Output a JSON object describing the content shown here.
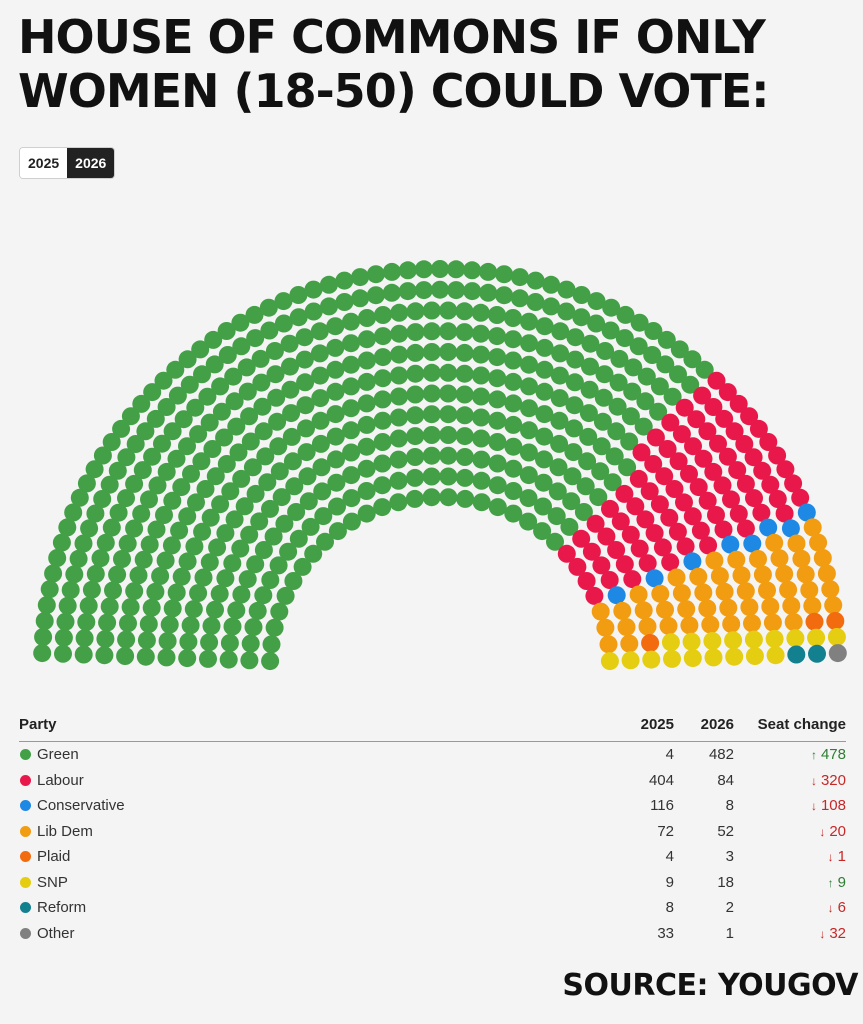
{
  "headline": {
    "line1": "HOUSE OF COMMONS IF ONLY",
    "line2": "WOMEN (18-50) COULD VOTE:"
  },
  "year_toggle": {
    "options": [
      "2025",
      "2026"
    ],
    "selected": "2026"
  },
  "table": {
    "headers": {
      "party": "Party",
      "y2025": "2025",
      "y2026": "2026",
      "change": "Seat change"
    }
  },
  "colors": {
    "Green": "#43a047",
    "Labour": "#e8194a",
    "Conservative": "#1e88e5",
    "Lib Dem": "#f29c11",
    "Plaid": "#f26b0f",
    "SNP": "#e5cd12",
    "Reform": "#12808f",
    "Other": "#808080"
  },
  "chart_data": {
    "type": "parliament",
    "title": "HOUSE OF COMMONS IF ONLY WOMEN (18-50) COULD VOTE:",
    "total_seats": 650,
    "series": [
      {
        "party": "Green",
        "seats_2025": 4,
        "seats_2026": 482,
        "change": "478",
        "direction": "up"
      },
      {
        "party": "Labour",
        "seats_2025": 404,
        "seats_2026": 84,
        "change": "320",
        "direction": "down"
      },
      {
        "party": "Conservative",
        "seats_2025": 116,
        "seats_2026": 8,
        "change": "108",
        "direction": "down"
      },
      {
        "party": "Lib Dem",
        "seats_2025": 72,
        "seats_2026": 52,
        "change": "20",
        "direction": "down"
      },
      {
        "party": "Plaid",
        "seats_2025": 4,
        "seats_2026": 3,
        "change": "1",
        "direction": "down"
      },
      {
        "party": "SNP",
        "seats_2025": 9,
        "seats_2026": 18,
        "change": "9",
        "direction": "up"
      },
      {
        "party": "Reform",
        "seats_2025": 8,
        "seats_2026": 2,
        "change": "6",
        "direction": "down"
      },
      {
        "party": "Other",
        "seats_2025": 33,
        "seats_2026": 1,
        "change": "32",
        "direction": "down"
      }
    ]
  },
  "source": "SOURCE: YOUGOV"
}
